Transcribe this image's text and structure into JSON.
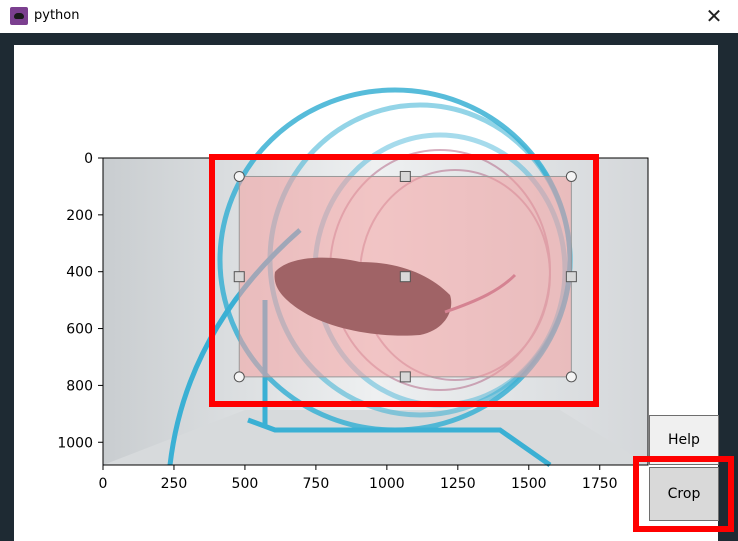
{
  "window": {
    "title": "python",
    "close_glyph": "✕"
  },
  "buttons": {
    "help_label": "Help",
    "crop_label": "Crop"
  },
  "chart_data": {
    "type": "image",
    "x_ticks": [
      "0",
      "250",
      "500",
      "750",
      "1000",
      "1250",
      "1500",
      "1750"
    ],
    "x_tick_values": [
      0,
      250,
      500,
      750,
      1000,
      1250,
      1500,
      1750
    ],
    "y_ticks": [
      "0",
      "200",
      "400",
      "600",
      "800",
      "1000"
    ],
    "y_tick_values": [
      0,
      200,
      400,
      600,
      800,
      1000
    ],
    "xlim": [
      0,
      1920
    ],
    "ylim": [
      1080,
      0
    ],
    "selection": {
      "x0": 480,
      "x1": 1650,
      "y0": 65,
      "y1": 770,
      "color": "#f4a0a0"
    }
  },
  "colors": {
    "highlight": "#ff0000",
    "wheel": "#3ab0d4"
  }
}
